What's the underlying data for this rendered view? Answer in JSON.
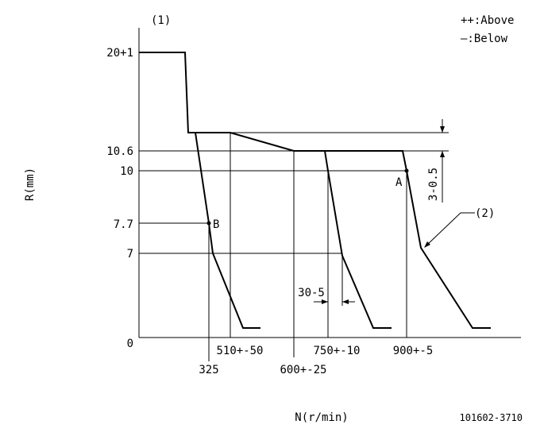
{
  "header": {
    "label": "(1)",
    "legend_above": "++:Above",
    "legend_below": "—:Below"
  },
  "y_axis": {
    "title": "R(mm)",
    "labels": [
      "20+1",
      "10.6",
      "10",
      "7.7",
      "7",
      "0"
    ]
  },
  "x_axis": {
    "title": "N(r/min)",
    "labels": [
      "325",
      "510+-50",
      "600+-25",
      "750+-10",
      "900+-5"
    ]
  },
  "points": {
    "a": "A",
    "b": "B"
  },
  "curve_label": "(2)",
  "dimensions": {
    "vertical": "3-0.5",
    "horizontal": "30-5"
  },
  "code": "101602-3710"
}
